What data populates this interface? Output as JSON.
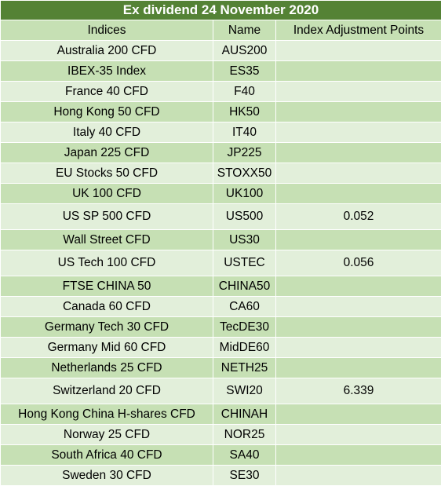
{
  "title": "Ex dividend 24 November 2020",
  "columns": [
    "Indices",
    "Name",
    "Index Adjustment Points"
  ],
  "rows": [
    {
      "index": "Australia 200 CFD",
      "name": "AUS200",
      "points": ""
    },
    {
      "index": "IBEX-35 Index",
      "name": "ES35",
      "points": ""
    },
    {
      "index": "France 40 CFD",
      "name": "F40",
      "points": ""
    },
    {
      "index": "Hong Kong 50 CFD",
      "name": "HK50",
      "points": ""
    },
    {
      "index": "Italy 40 CFD",
      "name": "IT40",
      "points": ""
    },
    {
      "index": "Japan 225 CFD",
      "name": "JP225",
      "points": ""
    },
    {
      "index": "EU Stocks 50 CFD",
      "name": "STOXX50",
      "points": ""
    },
    {
      "index": "UK 100 CFD",
      "name": "UK100",
      "points": ""
    },
    {
      "index": "US SP 500 CFD",
      "name": "US500",
      "points": "0.052"
    },
    {
      "index": "Wall Street CFD",
      "name": "US30",
      "points": ""
    },
    {
      "index": "US Tech 100 CFD",
      "name": "USTEC",
      "points": "0.056"
    },
    {
      "index": "FTSE CHINA 50",
      "name": "CHINA50",
      "points": ""
    },
    {
      "index": "Canada 60 CFD",
      "name": "CA60",
      "points": ""
    },
    {
      "index": "Germany Tech 30 CFD",
      "name": "TecDE30",
      "points": ""
    },
    {
      "index": "Germany Mid 60 CFD",
      "name": "MidDE60",
      "points": ""
    },
    {
      "index": "Netherlands 25 CFD",
      "name": "NETH25",
      "points": ""
    },
    {
      "index": "Switzerland 20 CFD",
      "name": "SWI20",
      "points": "6.339"
    },
    {
      "index": "Hong Kong China H-shares CFD",
      "name": "CHINAH",
      "points": ""
    },
    {
      "index": "Norway 25 CFD",
      "name": "NOR25",
      "points": ""
    },
    {
      "index": "South Africa 40 CFD",
      "name": "SA40",
      "points": ""
    },
    {
      "index": "Sweden 30 CFD",
      "name": "SE30",
      "points": ""
    }
  ],
  "colors": {
    "title_bg": "#548235",
    "title_text": "#ffffff",
    "row_light": "#e2efda",
    "row_dark": "#c6e0b4"
  }
}
